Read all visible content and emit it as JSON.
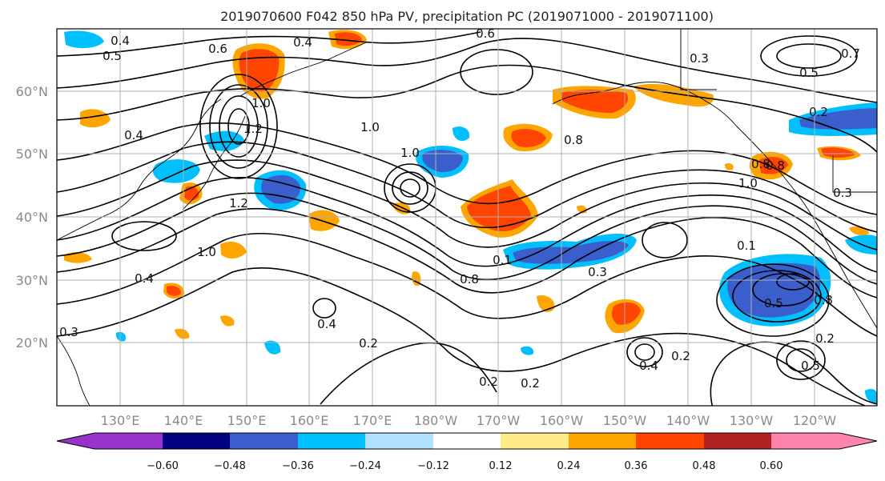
{
  "title": "2019070600 F042 850 hPa PV, precipitation PC (2019071000 - 2019071100)",
  "lat_labels": [
    "60°N",
    "50°N",
    "40°N",
    "30°N",
    "20°N"
  ],
  "lon_labels": [
    "130°E",
    "140°E",
    "150°E",
    "160°E",
    "170°E",
    "180°W",
    "170°W",
    "160°W",
    "150°W",
    "140°W",
    "130°W",
    "120°W"
  ],
  "colorbar": {
    "ticks": [
      "−0.60",
      "−0.48",
      "−0.36",
      "−0.24",
      "−0.12",
      "0.12",
      "0.24",
      "0.36",
      "0.48",
      "0.60"
    ],
    "colors": [
      "#9932cc",
      "#000080",
      "#3a5fcd",
      "#00bfff",
      "#b0e2ff",
      "#ffffff",
      "#ffeb8a",
      "#ffa500",
      "#ff4500",
      "#b22222",
      "#ff85b0"
    ]
  },
  "contour_labels": [
    "0.6",
    "0.4",
    "0.4",
    "0.5",
    "0.6",
    "0.3",
    "0.7",
    "0.5",
    "1.0",
    "1.2",
    "1.0",
    "1.0",
    "0.8",
    "0.2",
    "0.4",
    "0.8",
    "1.2",
    "1.0",
    "0.4",
    "0.3",
    "0.1",
    "0.8",
    "0.3",
    "0.5",
    "0.8",
    "0.4",
    "0.2",
    "0.2",
    "0.2",
    "0.4",
    "0.2",
    "0.5",
    "0.2",
    "0.1",
    "1.0",
    "0.8",
    "0.3"
  ]
}
